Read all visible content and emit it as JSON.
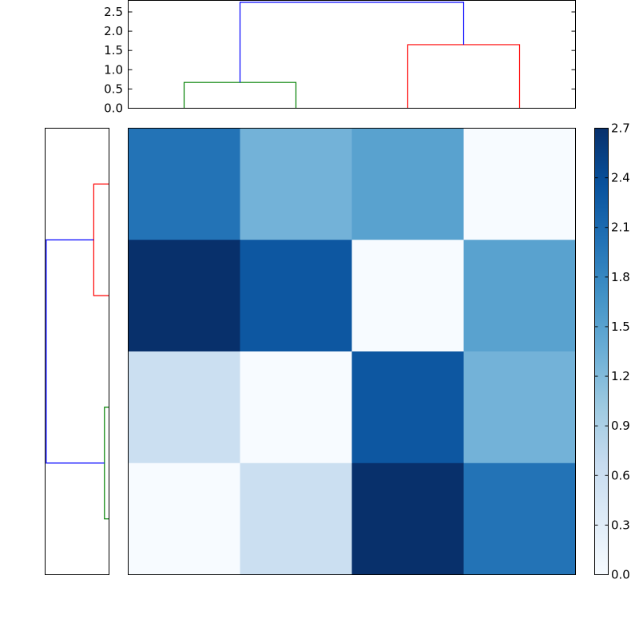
{
  "chart_data": {
    "type": "heatmap",
    "title": "",
    "xlabel": "",
    "ylabel": "",
    "matrix": [
      [
        2.0,
        1.3,
        1.5,
        0.0
      ],
      [
        2.7,
        2.3,
        0.0,
        1.5
      ],
      [
        0.6,
        0.0,
        2.3,
        1.3
      ],
      [
        0.0,
        0.6,
        2.7,
        2.0
      ]
    ],
    "colormap": "Blues",
    "color_range": [
      0.0,
      2.7
    ],
    "colorbar": {
      "ticks": [
        "0.0",
        "0.3",
        "0.6",
        "0.9",
        "1.2",
        "1.5",
        "1.8",
        "2.1",
        "2.4",
        "2.7"
      ]
    },
    "top_dendrogram": {
      "ylim": [
        0,
        2.8
      ],
      "yticks": [
        "0.0",
        "0.5",
        "1.0",
        "1.5",
        "2.0",
        "2.5"
      ],
      "links": [
        {
          "x": [
            5,
            5,
            15,
            15
          ],
          "y": [
            0.0,
            0.67,
            0.67,
            0.0
          ],
          "color": "#008000"
        },
        {
          "x": [
            25,
            25,
            35,
            35
          ],
          "y": [
            0.0,
            1.65,
            1.65,
            0.0
          ],
          "color": "#ff0000"
        },
        {
          "x": [
            10,
            10,
            30,
            30
          ],
          "y": [
            0.67,
            2.75,
            2.75,
            1.65
          ],
          "color": "#0000ff"
        }
      ]
    },
    "left_dendrogram": {
      "links": [
        {
          "x": [
            5,
            5,
            15,
            15
          ],
          "y": [
            0.0,
            0.67,
            0.67,
            0.0
          ],
          "color": "#ff0000"
        },
        {
          "x": [
            25,
            25,
            35,
            35
          ],
          "y": [
            0.0,
            0.2,
            0.2,
            0.0
          ],
          "color": "#008000"
        },
        {
          "x": [
            10,
            10,
            30,
            30
          ],
          "y": [
            0.67,
            2.75,
            2.75,
            0.2
          ],
          "color": "#0000ff"
        }
      ]
    }
  }
}
